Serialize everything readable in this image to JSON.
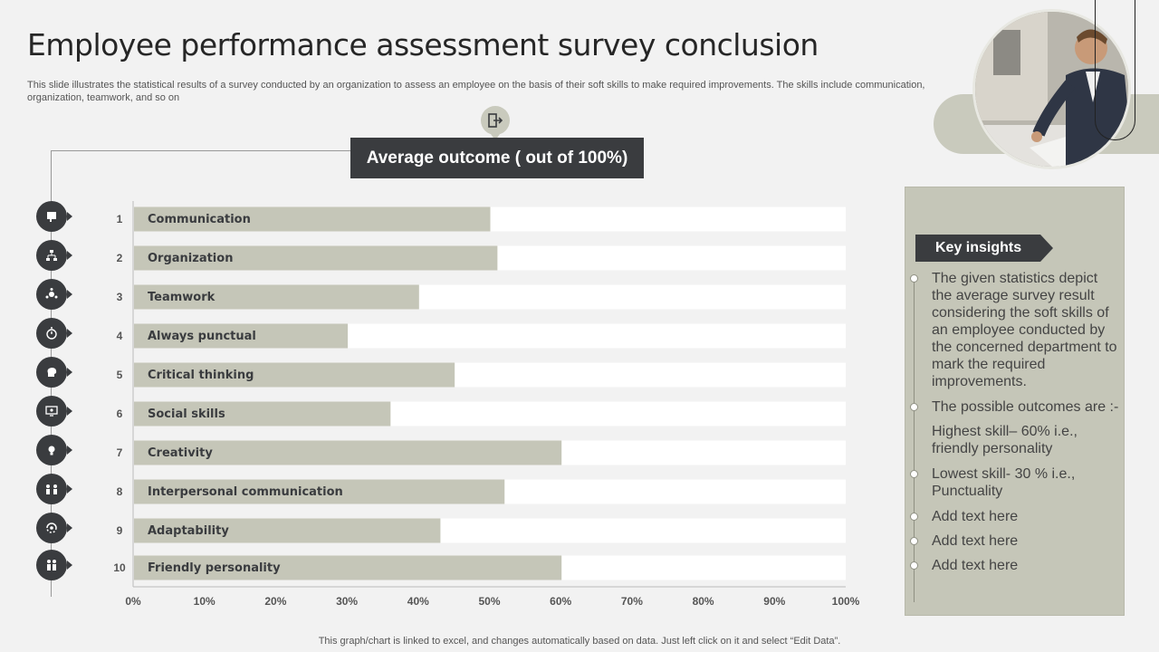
{
  "title": "Employee performance assessment survey conclusion",
  "description": "This slide illustrates the statistical results of a survey conducted by an organization to assess an employee on the basis of their soft skills to make required improvements. The skills include communication, organization, teamwork, and so on",
  "average_outcome_label": "Average outcome ( out of 100%)",
  "footer": "This graph/chart is linked to excel,  and changes automatically based on data. Just left click on it and select “Edit Data”.",
  "icons": [
    "presentation-icon",
    "org-chart-icon",
    "teamwork-icon",
    "stopwatch-icon",
    "brain-icon",
    "social-screen-icon",
    "lightbulb-icon",
    "people-talk-icon",
    "adapt-cycle-icon",
    "friends-icon"
  ],
  "insights": {
    "heading": "Key insights",
    "items": [
      "The given statistics depict the average survey result considering the soft skills of an employee conducted by the concerned department to mark the required improvements.",
      "The possible outcomes are :-",
      "Highest skill– 60% i.e., friendly personality",
      "Lowest skill- 30 % i.e., Punctuality",
      "Add text here",
      "Add text here",
      "Add text here"
    ]
  },
  "colors": {
    "bar": "#c5c6b8",
    "track": "#ffffff",
    "dark": "#3a3c3f",
    "accent": "#c9cabd"
  },
  "chart_data": {
    "type": "bar",
    "orientation": "horizontal",
    "ranks": [
      "1",
      "2",
      "3",
      "4",
      "5",
      "6",
      "7",
      "8",
      "9",
      "10"
    ],
    "categories": [
      "Communication",
      "Organization",
      "Teamwork",
      "Always punctual",
      "Critical thinking",
      "Social skills",
      "Creativity",
      "Interpersonal communication",
      "Adaptability",
      "Friendly personality"
    ],
    "values": [
      50,
      51,
      40,
      30,
      45,
      36,
      60,
      52,
      43,
      60
    ],
    "xlim": [
      0,
      100
    ],
    "xticks": [
      "0%",
      "10%",
      "20%",
      "30%",
      "40%",
      "50%",
      "60%",
      "70%",
      "80%",
      "90%",
      "100%"
    ],
    "grid": false
  }
}
